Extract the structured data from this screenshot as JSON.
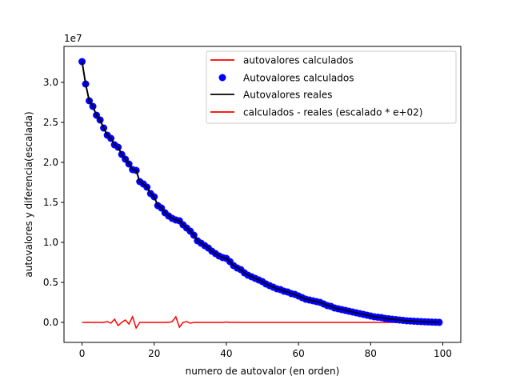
{
  "chart_data": {
    "type": "line",
    "xlabel": "numero de autovalor (en orden)",
    "ylabel": "autovalores y diferencia(escalada)",
    "offset_label": "1e7",
    "x_ticks": [
      0,
      20,
      40,
      60,
      80,
      100
    ],
    "y_ticks": [
      0.0,
      0.5,
      1.0,
      1.5,
      2.0,
      2.5,
      3.0
    ],
    "y_scale": 10000000,
    "xlim": [
      -5,
      105
    ],
    "ylim": [
      -0.25,
      3.45
    ],
    "grid": false,
    "legend_position": "top-right",
    "x": [
      0,
      1,
      2,
      3,
      4,
      5,
      6,
      7,
      8,
      9,
      10,
      11,
      12,
      13,
      14,
      15,
      16,
      17,
      18,
      19,
      20,
      21,
      22,
      23,
      24,
      25,
      26,
      27,
      28,
      29,
      30,
      31,
      32,
      33,
      34,
      35,
      36,
      37,
      38,
      39,
      40,
      41,
      42,
      43,
      44,
      45,
      46,
      47,
      48,
      49,
      50,
      51,
      52,
      53,
      54,
      55,
      56,
      57,
      58,
      59,
      60,
      61,
      62,
      63,
      64,
      65,
      66,
      67,
      68,
      69,
      70,
      71,
      72,
      73,
      74,
      75,
      76,
      77,
      78,
      79,
      80,
      81,
      82,
      83,
      84,
      85,
      86,
      87,
      88,
      89,
      90,
      91,
      92,
      93,
      94,
      95,
      96,
      97,
      98,
      99
    ],
    "series": [
      {
        "name": "autovalores calculados",
        "style": "line",
        "color": "#ff0000",
        "values": [
          3.26,
          2.98,
          2.77,
          2.7,
          2.59,
          2.53,
          2.43,
          2.34,
          2.3,
          2.22,
          2.19,
          2.1,
          2.04,
          1.98,
          1.91,
          1.9,
          1.76,
          1.73,
          1.69,
          1.61,
          1.57,
          1.46,
          1.43,
          1.37,
          1.33,
          1.3,
          1.28,
          1.27,
          1.22,
          1.18,
          1.14,
          1.09,
          1.02,
          0.99,
          0.96,
          0.93,
          0.89,
          0.86,
          0.83,
          0.81,
          0.8,
          0.76,
          0.71,
          0.68,
          0.66,
          0.62,
          0.59,
          0.57,
          0.55,
          0.53,
          0.51,
          0.48,
          0.46,
          0.44,
          0.42,
          0.41,
          0.39,
          0.38,
          0.36,
          0.35,
          0.33,
          0.31,
          0.29,
          0.28,
          0.27,
          0.26,
          0.25,
          0.23,
          0.21,
          0.2,
          0.18,
          0.17,
          0.16,
          0.15,
          0.14,
          0.13,
          0.12,
          0.11,
          0.1,
          0.09,
          0.08,
          0.07,
          0.065,
          0.06,
          0.05,
          0.045,
          0.04,
          0.035,
          0.03,
          0.025,
          0.02,
          0.018,
          0.015,
          0.012,
          0.01,
          0.008,
          0.006,
          0.004,
          0.002,
          0.001
        ]
      },
      {
        "name": "Autovalores calculados",
        "style": "markers",
        "color": "#0000ff",
        "values": [
          3.26,
          2.98,
          2.77,
          2.7,
          2.59,
          2.53,
          2.43,
          2.34,
          2.3,
          2.22,
          2.19,
          2.1,
          2.04,
          1.98,
          1.91,
          1.9,
          1.76,
          1.73,
          1.69,
          1.61,
          1.57,
          1.46,
          1.43,
          1.37,
          1.33,
          1.3,
          1.28,
          1.27,
          1.22,
          1.18,
          1.14,
          1.09,
          1.02,
          0.99,
          0.96,
          0.93,
          0.89,
          0.86,
          0.83,
          0.81,
          0.8,
          0.76,
          0.71,
          0.68,
          0.66,
          0.62,
          0.59,
          0.57,
          0.55,
          0.53,
          0.51,
          0.48,
          0.46,
          0.44,
          0.42,
          0.41,
          0.39,
          0.38,
          0.36,
          0.35,
          0.33,
          0.31,
          0.29,
          0.28,
          0.27,
          0.26,
          0.25,
          0.23,
          0.21,
          0.2,
          0.18,
          0.17,
          0.16,
          0.15,
          0.14,
          0.13,
          0.12,
          0.11,
          0.1,
          0.09,
          0.08,
          0.07,
          0.065,
          0.06,
          0.05,
          0.045,
          0.04,
          0.035,
          0.03,
          0.025,
          0.02,
          0.018,
          0.015,
          0.012,
          0.01,
          0.008,
          0.006,
          0.004,
          0.002,
          0.001
        ]
      },
      {
        "name": "Autovalores reales",
        "style": "line",
        "color": "#000000",
        "values": [
          3.26,
          2.98,
          2.77,
          2.7,
          2.59,
          2.53,
          2.43,
          2.34,
          2.3,
          2.22,
          2.19,
          2.1,
          2.04,
          1.98,
          1.91,
          1.9,
          1.76,
          1.73,
          1.69,
          1.61,
          1.57,
          1.46,
          1.43,
          1.37,
          1.33,
          1.3,
          1.28,
          1.27,
          1.22,
          1.18,
          1.14,
          1.09,
          1.02,
          0.99,
          0.96,
          0.93,
          0.89,
          0.86,
          0.83,
          0.81,
          0.8,
          0.76,
          0.71,
          0.68,
          0.66,
          0.62,
          0.59,
          0.57,
          0.55,
          0.53,
          0.51,
          0.48,
          0.46,
          0.44,
          0.42,
          0.41,
          0.39,
          0.38,
          0.36,
          0.35,
          0.33,
          0.31,
          0.29,
          0.28,
          0.27,
          0.26,
          0.25,
          0.23,
          0.21,
          0.2,
          0.18,
          0.17,
          0.16,
          0.15,
          0.14,
          0.13,
          0.12,
          0.11,
          0.1,
          0.09,
          0.08,
          0.07,
          0.065,
          0.06,
          0.05,
          0.045,
          0.04,
          0.035,
          0.03,
          0.025,
          0.02,
          0.018,
          0.015,
          0.012,
          0.01,
          0.008,
          0.006,
          0.004,
          0.002,
          0.001
        ]
      },
      {
        "name": "calculados - reales (escalado * e+02)",
        "style": "line",
        "color": "#ff0000",
        "values": [
          0,
          0,
          0,
          0,
          0,
          0,
          0,
          0.01,
          -0.01,
          0.04,
          -0.04,
          0,
          0.03,
          -0.02,
          0.07,
          -0.07,
          0,
          0,
          0,
          0,
          0,
          0,
          0,
          0,
          0,
          0.01,
          0.07,
          -0.06,
          0,
          0.01,
          -0.01,
          0,
          0,
          0,
          0,
          0,
          0,
          0,
          0,
          0,
          0.005,
          0,
          0,
          0,
          0,
          0,
          0,
          0,
          0,
          0,
          0,
          0,
          0,
          0,
          0,
          0,
          0,
          0,
          0,
          0,
          0,
          0,
          0,
          0,
          0,
          0,
          0,
          0,
          0,
          0,
          0,
          0,
          0,
          0,
          0,
          0,
          0,
          0,
          0,
          0,
          0,
          0,
          0,
          0,
          0,
          0,
          0,
          0,
          0,
          0,
          0,
          0,
          0,
          0,
          0,
          0,
          0,
          0,
          0,
          0
        ]
      }
    ]
  }
}
